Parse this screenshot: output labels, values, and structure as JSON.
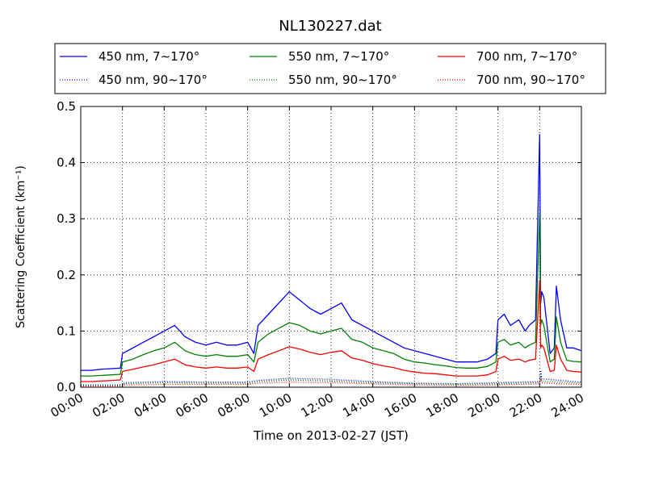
{
  "chart_data": {
    "type": "line",
    "title": "NL130227.dat",
    "xlabel": "Time on 2013-02-27 (JST)",
    "ylabel": "Scattering Coefficient (km⁻¹)",
    "xlim": [
      0,
      24
    ],
    "ylim": [
      0,
      0.5
    ],
    "x_unit": "hour",
    "xticks": [
      0,
      2,
      4,
      6,
      8,
      10,
      12,
      14,
      16,
      18,
      20,
      22,
      24
    ],
    "xtick_labels": [
      "00:00",
      "02:00",
      "04:00",
      "06:00",
      "08:00",
      "10:00",
      "12:00",
      "14:00",
      "16:00",
      "18:00",
      "20:00",
      "22:00",
      "24:00"
    ],
    "yticks": [
      0.0,
      0.1,
      0.2,
      0.3,
      0.4,
      0.5
    ],
    "ytick_labels": [
      "0.0",
      "0.1",
      "0.2",
      "0.3",
      "0.4",
      "0.5"
    ],
    "grid": true,
    "legend_position": "top",
    "series": [
      {
        "name": "450 nm, 7∼170°",
        "color": "#0000ff",
        "style": "solid",
        "x": [
          0,
          0.5,
          1,
          1.5,
          1.9,
          2,
          2.5,
          3,
          3.5,
          4,
          4.5,
          5,
          5.5,
          6,
          6.5,
          7,
          7.5,
          8,
          8.3,
          8.5,
          9,
          9.5,
          10,
          10.5,
          11,
          11.5,
          12,
          12.5,
          13,
          13.5,
          14,
          14.5,
          15,
          15.5,
          16,
          16.5,
          17,
          17.5,
          18,
          18.5,
          19,
          19.5,
          19.9,
          20,
          20.3,
          20.6,
          21,
          21.3,
          21.5,
          21.8,
          22,
          22.05,
          22.1,
          22.2,
          22.5,
          22.7,
          22.8,
          23,
          23.3,
          23.6,
          24
        ],
        "y": [
          0.03,
          0.03,
          0.032,
          0.033,
          0.034,
          0.06,
          0.07,
          0.08,
          0.09,
          0.1,
          0.11,
          0.09,
          0.08,
          0.075,
          0.08,
          0.075,
          0.075,
          0.08,
          0.06,
          0.11,
          0.13,
          0.15,
          0.17,
          0.155,
          0.14,
          0.13,
          0.14,
          0.15,
          0.12,
          0.11,
          0.1,
          0.09,
          0.08,
          0.07,
          0.065,
          0.06,
          0.055,
          0.05,
          0.045,
          0.045,
          0.045,
          0.05,
          0.06,
          0.12,
          0.13,
          0.11,
          0.12,
          0.1,
          0.11,
          0.12,
          0.45,
          0.15,
          0.17,
          0.16,
          0.06,
          0.07,
          0.18,
          0.12,
          0.07,
          0.07,
          0.065
        ]
      },
      {
        "name": "550 nm, 7∼170°",
        "color": "#008000",
        "style": "solid",
        "x": [
          0,
          0.5,
          1,
          1.5,
          1.9,
          2,
          2.5,
          3,
          3.5,
          4,
          4.5,
          5,
          5.5,
          6,
          6.5,
          7,
          7.5,
          8,
          8.3,
          8.5,
          9,
          9.5,
          10,
          10.5,
          11,
          11.5,
          12,
          12.5,
          13,
          13.5,
          14,
          14.5,
          15,
          15.5,
          16,
          16.5,
          17,
          17.5,
          18,
          18.5,
          19,
          19.5,
          19.9,
          20,
          20.3,
          20.6,
          21,
          21.3,
          21.5,
          21.8,
          22,
          22.05,
          22.1,
          22.2,
          22.5,
          22.7,
          22.8,
          23,
          23.3,
          23.6,
          24
        ],
        "y": [
          0.02,
          0.02,
          0.021,
          0.022,
          0.023,
          0.045,
          0.05,
          0.058,
          0.065,
          0.07,
          0.08,
          0.065,
          0.058,
          0.055,
          0.058,
          0.055,
          0.055,
          0.058,
          0.045,
          0.08,
          0.095,
          0.105,
          0.115,
          0.11,
          0.1,
          0.095,
          0.1,
          0.105,
          0.085,
          0.08,
          0.07,
          0.065,
          0.06,
          0.05,
          0.045,
          0.043,
          0.04,
          0.038,
          0.035,
          0.034,
          0.034,
          0.037,
          0.045,
          0.08,
          0.085,
          0.075,
          0.08,
          0.07,
          0.075,
          0.08,
          0.31,
          0.11,
          0.12,
          0.11,
          0.045,
          0.05,
          0.125,
          0.08,
          0.048,
          0.046,
          0.045
        ]
      },
      {
        "name": "700 nm, 7∼170°",
        "color": "#ff0000",
        "style": "solid",
        "x": [
          0,
          0.5,
          1,
          1.5,
          1.9,
          2,
          2.5,
          3,
          3.5,
          4,
          4.5,
          5,
          5.5,
          6,
          6.5,
          7,
          7.5,
          8,
          8.3,
          8.5,
          9,
          9.5,
          10,
          10.5,
          11,
          11.5,
          12,
          12.5,
          13,
          13.5,
          14,
          14.5,
          15,
          15.5,
          16,
          16.5,
          17,
          17.5,
          18,
          18.5,
          19,
          19.5,
          19.9,
          20,
          20.3,
          20.6,
          21,
          21.3,
          21.5,
          21.8,
          22,
          22.05,
          22.1,
          22.2,
          22.5,
          22.7,
          22.8,
          23,
          23.3,
          23.6,
          24
        ],
        "y": [
          0.01,
          0.01,
          0.011,
          0.012,
          0.013,
          0.028,
          0.032,
          0.036,
          0.04,
          0.045,
          0.05,
          0.04,
          0.036,
          0.034,
          0.036,
          0.034,
          0.034,
          0.036,
          0.028,
          0.05,
          0.058,
          0.065,
          0.072,
          0.068,
          0.062,
          0.058,
          0.062,
          0.065,
          0.052,
          0.048,
          0.042,
          0.038,
          0.035,
          0.03,
          0.027,
          0.025,
          0.024,
          0.022,
          0.02,
          0.02,
          0.02,
          0.022,
          0.028,
          0.05,
          0.055,
          0.048,
          0.05,
          0.045,
          0.048,
          0.05,
          0.19,
          0.07,
          0.075,
          0.07,
          0.028,
          0.03,
          0.075,
          0.05,
          0.03,
          0.028,
          0.027
        ]
      },
      {
        "name": "450 nm, 90∼170°",
        "color": "#0000ff",
        "style": "dotted",
        "x": [
          0,
          2,
          2.1,
          4,
          6,
          8,
          8.5,
          10,
          12,
          14,
          16,
          18,
          20,
          22,
          22.05,
          22.1,
          23,
          24
        ],
        "y": [
          0.004,
          0.004,
          0.008,
          0.01,
          0.009,
          0.009,
          0.012,
          0.016,
          0.014,
          0.01,
          0.007,
          0.006,
          0.008,
          0.01,
          0.03,
          0.015,
          0.012,
          0.009
        ]
      },
      {
        "name": "550 nm, 90∼170°",
        "color": "#008000",
        "style": "dotted",
        "x": [
          0,
          2,
          2.1,
          4,
          6,
          8,
          8.5,
          10,
          12,
          14,
          16,
          18,
          20,
          22,
          22.05,
          22.1,
          23,
          24
        ],
        "y": [
          0.003,
          0.003,
          0.006,
          0.008,
          0.007,
          0.007,
          0.01,
          0.013,
          0.011,
          0.008,
          0.006,
          0.005,
          0.006,
          0.008,
          0.02,
          0.011,
          0.009,
          0.007
        ]
      },
      {
        "name": "700 nm, 90∼170°",
        "color": "#ff0000",
        "style": "dotted",
        "x": [
          0,
          2,
          2.1,
          4,
          6,
          8,
          8.5,
          10,
          12,
          14,
          16,
          18,
          20,
          22,
          22.05,
          22.1,
          23,
          24
        ],
        "y": [
          0.002,
          0.002,
          0.004,
          0.005,
          0.005,
          0.005,
          0.007,
          0.009,
          0.008,
          0.006,
          0.004,
          0.003,
          0.004,
          0.006,
          0.014,
          0.008,
          0.006,
          0.005
        ]
      }
    ]
  }
}
